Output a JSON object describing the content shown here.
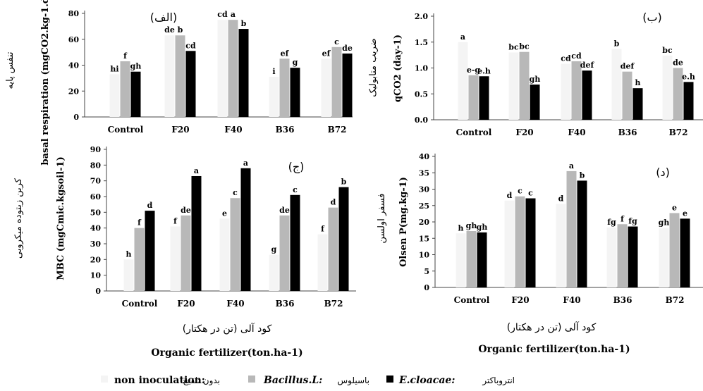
{
  "chart_data": [
    {
      "type": "bar",
      "title": "(الف)",
      "ylabel": "basal respiration (mgCO2.kg-1.day-1)",
      "ylabel_fa": "تنفس پایه",
      "ylim": [
        0,
        80
      ],
      "yticks": [
        0,
        20,
        40,
        60,
        80
      ],
      "categories": [
        "Control",
        "F20",
        "F40",
        "B36",
        "B72"
      ],
      "series": [
        {
          "name": "non inoculation",
          "values": [
            33,
            63,
            75,
            31,
            45
          ],
          "labels": [
            "hi",
            "de",
            "cd",
            "i",
            "ef"
          ]
        },
        {
          "name": "Bacillus.L",
          "values": [
            43,
            63,
            75,
            45,
            54
          ],
          "labels": [
            "f",
            "b",
            "a",
            "ef",
            "c"
          ]
        },
        {
          "name": "E.cloacae",
          "values": [
            35,
            51,
            68,
            38,
            49
          ],
          "labels": [
            "gh",
            "cd",
            "b",
            "g",
            "de"
          ]
        }
      ]
    },
    {
      "type": "bar",
      "title": "(ب)",
      "ylabel": "qCO2 (day-1)",
      "ylabel_fa": "ضریب متابولیک",
      "ylim": [
        0,
        2.0
      ],
      "yticks": [
        0.0,
        0.5,
        1.0,
        1.5,
        2.0
      ],
      "categories": [
        "Control",
        "F20",
        "F40",
        "B36",
        "B72"
      ],
      "series": [
        {
          "name": "non inoculation",
          "values": [
            1.5,
            1.3,
            1.08,
            1.37,
            1.24
          ],
          "labels": [
            "a",
            "bc",
            "cd",
            "b",
            "bc"
          ]
        },
        {
          "name": "Bacillus.L",
          "values": [
            0.86,
            1.31,
            1.13,
            0.93,
            1.0
          ],
          "labels": [
            "e-g",
            "bc",
            "cd",
            "def",
            "de"
          ]
        },
        {
          "name": "E.cloacae",
          "values": [
            0.84,
            0.68,
            0.95,
            0.61,
            0.73
          ],
          "labels": [
            "e.h",
            "gh",
            "def",
            "h",
            "e.h"
          ]
        }
      ]
    },
    {
      "type": "bar",
      "title": "(ج)",
      "ylabel": "MBC (mgCmic.kgsoil-1)",
      "ylabel_fa": "کربن زیتوده میکروبی",
      "ylim": [
        0,
        90
      ],
      "yticks": [
        0,
        10,
        20,
        30,
        40,
        50,
        60,
        70,
        80,
        90
      ],
      "categories": [
        "Control",
        "F20",
        "F40",
        "B36",
        "B72"
      ],
      "series": [
        {
          "name": "non inoculation",
          "values": [
            20,
            41,
            46,
            23,
            36
          ],
          "labels": [
            "h",
            "f",
            "e",
            "g",
            "f"
          ]
        },
        {
          "name": "Bacillus.L",
          "values": [
            40,
            48,
            59,
            48,
            53
          ],
          "labels": [
            "f",
            "de",
            "c",
            "de",
            "d"
          ]
        },
        {
          "name": "E.cloacae",
          "values": [
            51,
            73,
            78,
            61,
            66
          ],
          "labels": [
            "d",
            "a",
            "a",
            "c",
            "b"
          ]
        }
      ]
    },
    {
      "type": "bar",
      "title": "(د)",
      "ylabel": "Olsen P(mg.kg-1)",
      "ylabel_fa": "فسفر اولسن",
      "ylim": [
        0,
        40
      ],
      "yticks": [
        0,
        5,
        10,
        15,
        20,
        25,
        30,
        35,
        40
      ],
      "categories": [
        "Control",
        "F20",
        "F40",
        "B36",
        "B72"
      ],
      "series": [
        {
          "name": "non inoculation",
          "values": [
            16.5,
            26.5,
            25.5,
            18.3,
            18.2
          ],
          "labels": [
            "h",
            "d",
            "d",
            "fg",
            "gh"
          ]
        },
        {
          "name": "Bacillus.L",
          "values": [
            17.2,
            27.8,
            35.5,
            19.3,
            22.7
          ],
          "labels": [
            "gh",
            "c",
            "a",
            "f",
            "e"
          ]
        },
        {
          "name": "E.cloacae",
          "values": [
            16.8,
            27.2,
            32.6,
            18.6,
            21.0
          ],
          "labels": [
            "gh",
            "c",
            "b",
            "fg",
            "e"
          ]
        }
      ]
    }
  ],
  "xaxis": {
    "label_fa": "کود آلی (تن در هکتار)",
    "label_en": "Organic fertilizer(ton.ha-1)"
  },
  "legend": {
    "placement": "bottom",
    "items": [
      {
        "label_en": "non inoculation:",
        "label_fa": "بدون تلقیح",
        "color": "#f4f4f4",
        "italic": false
      },
      {
        "label_en": "Bacillus.L:",
        "label_fa": "باسیلوس",
        "color": "#b8b8b8",
        "italic": true
      },
      {
        "label_en": "E.cloacae:",
        "label_fa": "انتروباکتر",
        "color": "#000000",
        "italic": true
      }
    ]
  }
}
